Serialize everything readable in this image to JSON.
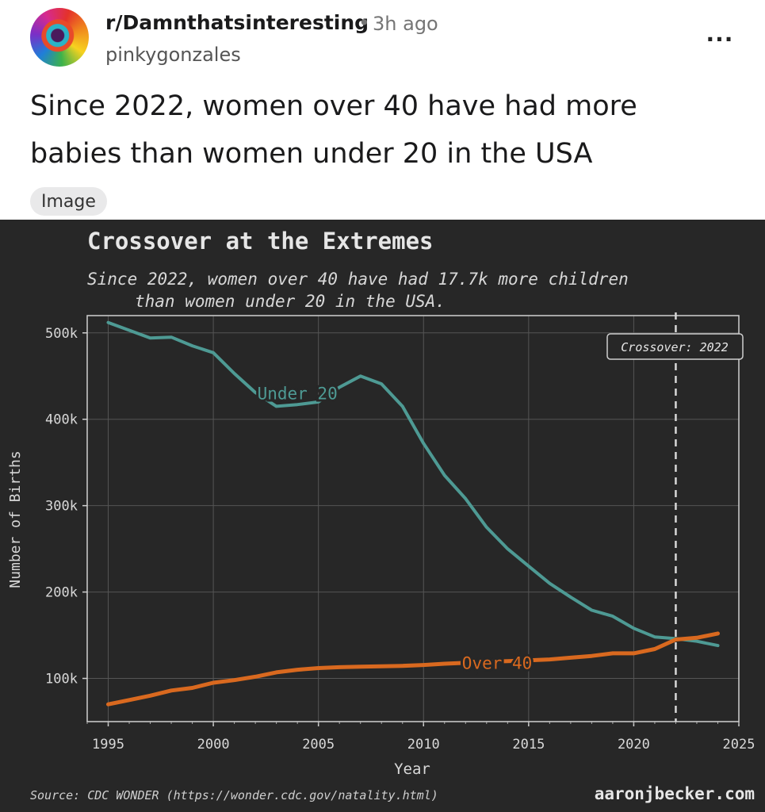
{
  "post": {
    "subreddit": "r/Damnthatsinteresting",
    "separator": "•",
    "time_ago": "3h ago",
    "author": "pinkygonzales",
    "more_label": "...",
    "title_line1": "Since 2022, women over 40 have had more",
    "title_line2": "babies than women under 20 in the USA",
    "image_tag": "Image"
  },
  "colors": {
    "chart_background": "#272727",
    "under_20": "#4e9a94",
    "over_40": "#d9691f",
    "text_light": "#e6e6e6",
    "grid": "#555555"
  },
  "chart_data": {
    "type": "line",
    "title": "Crossover at the Extremes",
    "subtitle_line1": "Since 2022, women over 40 have had 17.7k more children",
    "subtitle_line2": "than women under 20 in the USA.",
    "xlabel": "Year",
    "ylabel": "Number of Births",
    "xlim": [
      1994,
      2025
    ],
    "ylim": [
      50000,
      520000
    ],
    "x_ticks": [
      1995,
      2000,
      2005,
      2010,
      2015,
      2020,
      2025
    ],
    "y_ticks": [
      {
        "value": 100000,
        "label": "100k"
      },
      {
        "value": 200000,
        "label": "200k"
      },
      {
        "value": 300000,
        "label": "300k"
      },
      {
        "value": 400000,
        "label": "400k"
      },
      {
        "value": 500000,
        "label": "500k"
      }
    ],
    "grid": true,
    "crossover_year": 2022,
    "crossover_label": "Crossover: 2022",
    "source": "Source: CDC WONDER (https://wonder.cdc.gov/natality.html)",
    "credit": "aaronjbecker.com",
    "x": [
      1995,
      1996,
      1997,
      1998,
      1999,
      2000,
      2001,
      2002,
      2003,
      2004,
      2005,
      2006,
      2007,
      2008,
      2009,
      2010,
      2011,
      2012,
      2013,
      2014,
      2015,
      2016,
      2017,
      2018,
      2019,
      2020,
      2021,
      2022,
      2023,
      2024
    ],
    "series": [
      {
        "name": "Under 20",
        "values": [
          512000,
          503000,
          494000,
          495000,
          485000,
          477000,
          453000,
          431000,
          415000,
          417000,
          420000,
          437000,
          450000,
          441000,
          415000,
          372000,
          335000,
          308000,
          275000,
          250000,
          230000,
          210000,
          194000,
          179000,
          172000,
          158000,
          148000,
          146000,
          143000,
          138000
        ]
      },
      {
        "name": "Over 40",
        "values": [
          70000,
          75000,
          80000,
          86000,
          89000,
          95000,
          98000,
          102000,
          107000,
          110000,
          112000,
          113000,
          113500,
          114000,
          114500,
          115500,
          117000,
          118000,
          119000,
          120000,
          121000,
          122000,
          124000,
          126000,
          129000,
          129000,
          134000,
          145000,
          147000,
          152000
        ]
      }
    ]
  }
}
